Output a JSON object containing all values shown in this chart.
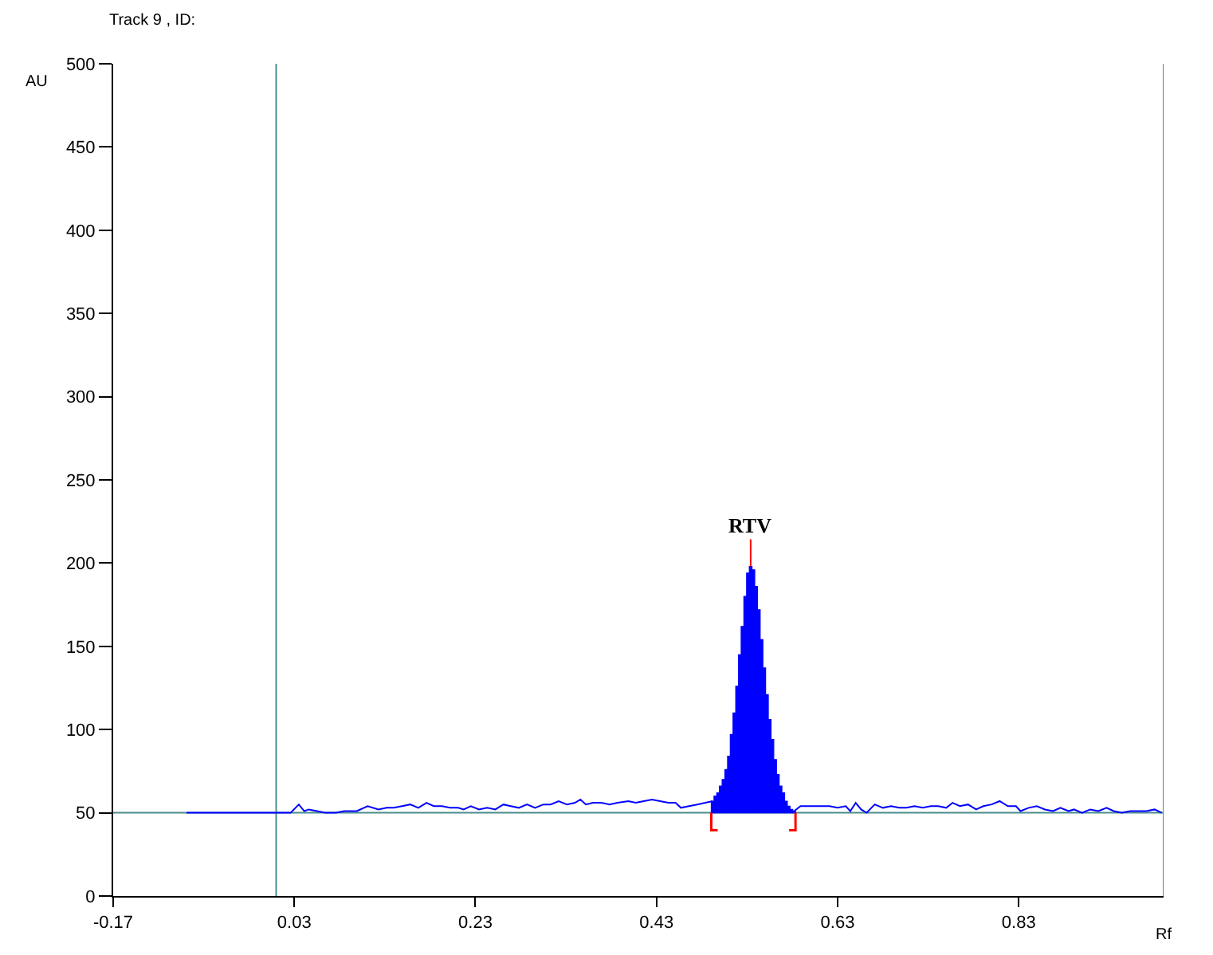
{
  "chart_data": {
    "type": "line",
    "title": "Track 9 , ID:",
    "xlabel": "Rf",
    "ylabel": "AU",
    "xlim": [
      -0.17,
      0.99
    ],
    "xticks": [
      -0.17,
      0.03,
      0.23,
      0.43,
      0.63,
      0.83
    ],
    "ylim": [
      0,
      500
    ],
    "yticks": [
      0,
      50,
      100,
      150,
      200,
      250,
      300,
      350,
      400,
      450,
      500
    ],
    "grid": false,
    "series": [
      {
        "color": "#0000ff",
        "x": [
          -0.089,
          0.026,
          0.035,
          0.041,
          0.046,
          0.055,
          0.064,
          0.076,
          0.085,
          0.099,
          0.111,
          0.123,
          0.132,
          0.14,
          0.149,
          0.158,
          0.167,
          0.176,
          0.184,
          0.193,
          0.202,
          0.211,
          0.217,
          0.225,
          0.234,
          0.243,
          0.252,
          0.261,
          0.269,
          0.278,
          0.287,
          0.296,
          0.305,
          0.313,
          0.322,
          0.331,
          0.34,
          0.346,
          0.352,
          0.36,
          0.369,
          0.378,
          0.387,
          0.399,
          0.407,
          0.416,
          0.425,
          0.434,
          0.443,
          0.451,
          0.457,
          0.466,
          0.475,
          0.484,
          0.492,
          0.537,
          0.582,
          0.589,
          0.598,
          0.61,
          0.621,
          0.63,
          0.639,
          0.644,
          0.65,
          0.656,
          0.662,
          0.671,
          0.68,
          0.689,
          0.698,
          0.706,
          0.715,
          0.724,
          0.733,
          0.741,
          0.75,
          0.757,
          0.765,
          0.774,
          0.783,
          0.791,
          0.8,
          0.809,
          0.818,
          0.827,
          0.832,
          0.841,
          0.85,
          0.859,
          0.868,
          0.876,
          0.885,
          0.891,
          0.9,
          0.909,
          0.918,
          0.927,
          0.935,
          0.944,
          0.953,
          0.962,
          0.971,
          0.98,
          0.988
        ],
        "values": [
          50,
          50,
          55,
          51,
          52,
          51,
          50,
          50,
          51,
          51,
          54,
          52,
          53,
          53,
          54,
          55,
          53,
          56,
          54,
          54,
          53,
          53,
          52,
          54,
          52,
          53,
          52,
          55,
          54,
          53,
          55,
          53,
          55,
          55,
          57,
          55,
          56,
          58,
          55,
          56,
          56,
          55,
          56,
          57,
          56,
          57,
          58,
          57,
          56,
          56,
          53,
          54,
          55,
          56,
          57,
          null,
          51,
          54,
          54,
          54,
          54,
          53,
          54,
          51,
          56,
          52,
          50,
          55,
          53,
          54,
          53,
          53,
          54,
          53,
          54,
          54,
          53,
          56,
          54,
          55,
          52,
          54,
          55,
          57,
          54,
          54,
          51,
          53,
          54,
          52,
          51,
          53,
          51,
          52,
          50,
          52,
          51,
          53,
          51,
          50,
          51,
          51,
          51,
          52,
          50
        ]
      },
      {
        "type": "bar",
        "color": "#0000ff",
        "x": [
          0.492,
          0.495,
          0.498,
          0.501,
          0.504,
          0.507,
          0.51,
          0.513,
          0.516,
          0.519,
          0.522,
          0.525,
          0.528,
          0.531,
          0.534,
          0.537,
          0.54,
          0.543,
          0.546,
          0.549,
          0.552,
          0.555,
          0.558,
          0.561,
          0.564,
          0.567,
          0.57,
          0.573,
          0.576,
          0.579,
          0.582
        ],
        "base": [
          50,
          50,
          50,
          50,
          50,
          50,
          50,
          50,
          50,
          50,
          50,
          50,
          50,
          50,
          50,
          50,
          50,
          50,
          50,
          50,
          50,
          50,
          50,
          50,
          50,
          50,
          50,
          50,
          50,
          50,
          50
        ],
        "values": [
          7,
          10,
          12,
          16,
          20,
          26,
          34,
          47,
          60,
          76,
          95,
          112,
          130,
          144,
          148,
          146,
          136,
          122,
          104,
          87,
          71,
          56,
          44,
          32,
          23,
          16,
          12,
          7,
          4,
          2,
          1
        ]
      }
    ],
    "ref_lines": [
      {
        "axis": "x",
        "value": 0.01,
        "color": "#4b8b8b"
      },
      {
        "axis": "x",
        "value": 0.99,
        "color": "#4b8b8b"
      },
      {
        "axis": "y",
        "value": 50,
        "color": "#4b8b8b"
      }
    ],
    "annotations": [
      {
        "text": "RTV",
        "x": 0.534,
        "y": 198
      }
    ]
  }
}
